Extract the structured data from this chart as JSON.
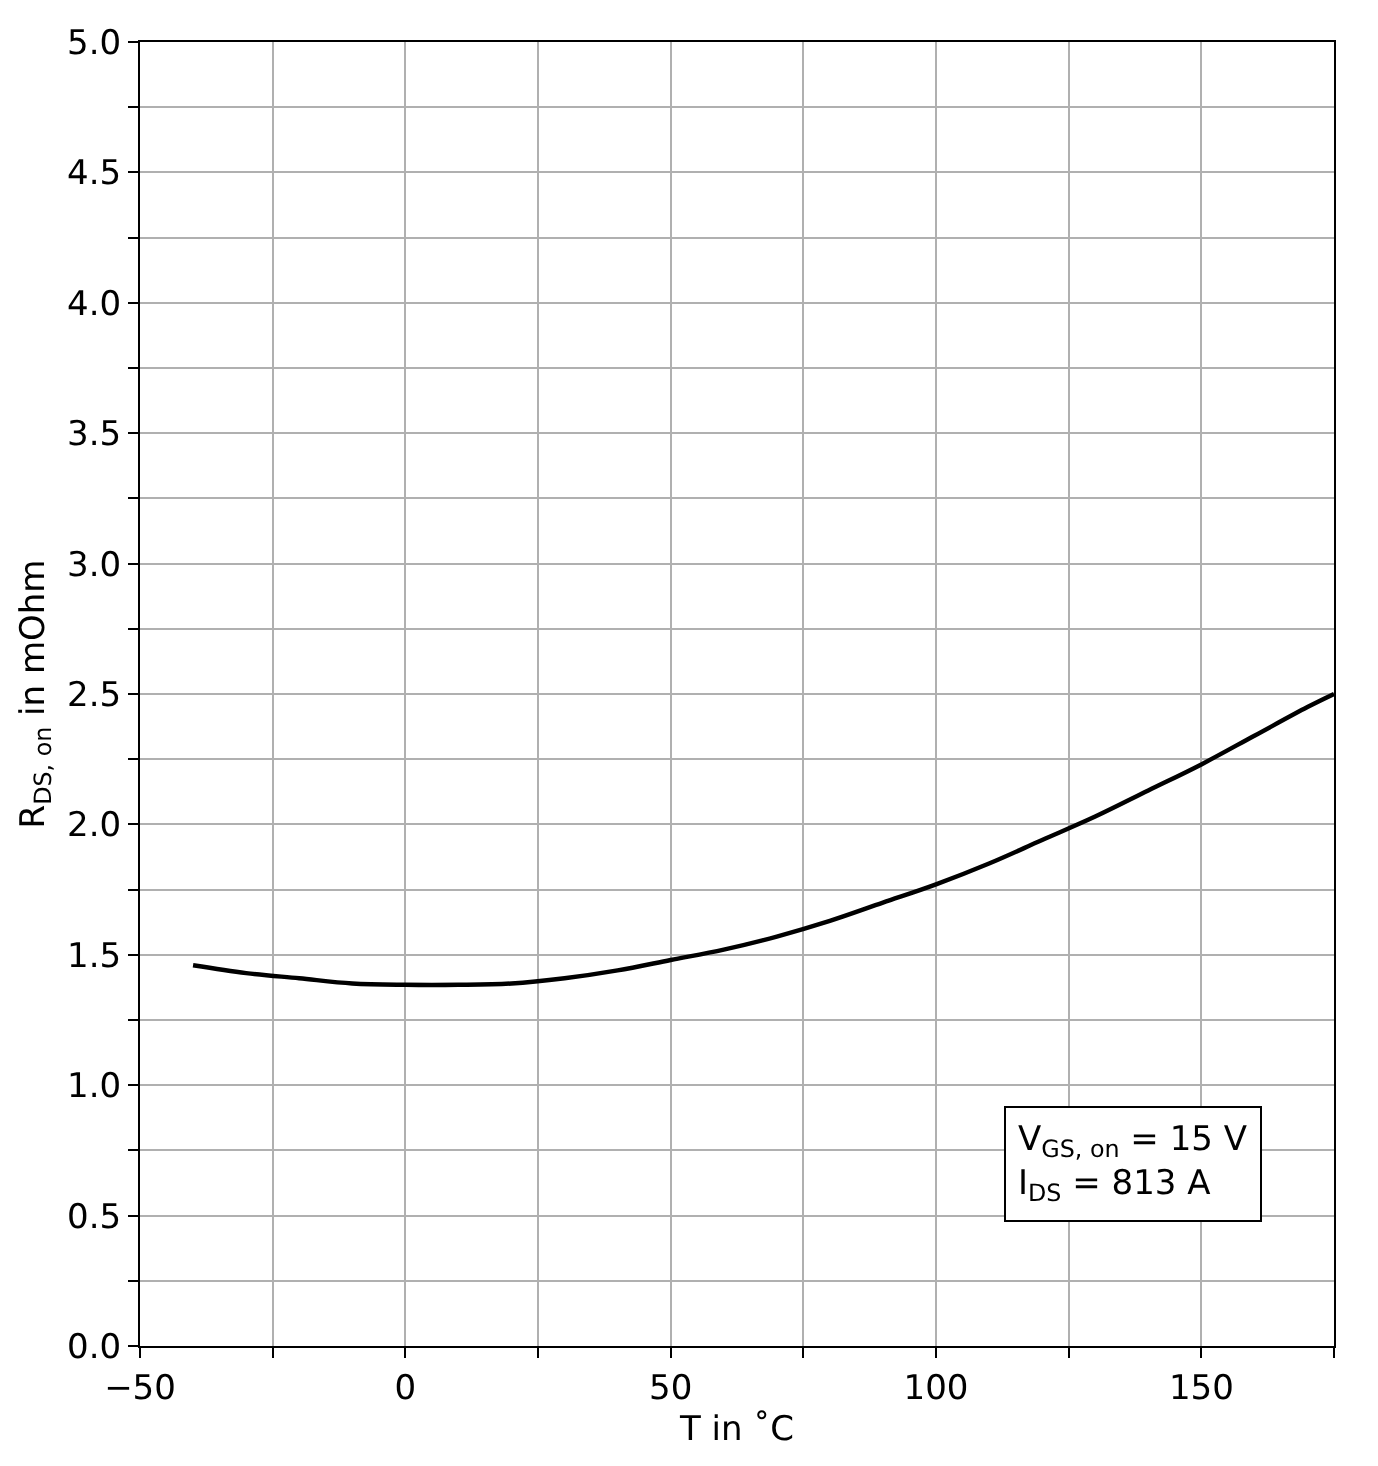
{
  "chart_data": {
    "type": "line",
    "xlabel": "T in ˚C",
    "ylabel": "R$_{DS, on}$ in mOhm",
    "x": [
      -40,
      -30,
      -20,
      -10,
      0,
      10,
      20,
      30,
      40,
      50,
      60,
      70,
      80,
      90,
      100,
      110,
      120,
      130,
      140,
      150,
      160,
      170,
      175
    ],
    "series": [
      {
        "color": "#000000",
        "values": [
          1.46,
          1.43,
          1.41,
          1.39,
          1.385,
          1.385,
          1.39,
          1.41,
          1.44,
          1.48,
          1.52,
          1.57,
          1.63,
          1.7,
          1.77,
          1.85,
          1.94,
          2.03,
          2.13,
          2.23,
          2.34,
          2.45,
          2.5
        ]
      }
    ],
    "xlim": [
      -50,
      175
    ],
    "xticks": [
      -50,
      {
        "value": -25,
        "label": null
      },
      0,
      {
        "value": 25,
        "label": null
      },
      50,
      {
        "value": 75,
        "label": null
      },
      100,
      {
        "value": 125,
        "label": null
      },
      150,
      {
        "value": 175,
        "label": null
      }
    ],
    "ylim": [
      0,
      5
    ],
    "yticks": [
      "0.0",
      {
        "value": 0.25,
        "label": null
      },
      {
        "value": 0.5,
        "label": "0.5"
      },
      {
        "value": 0.75,
        "label": null
      },
      {
        "value": 1,
        "label": "1.0"
      },
      {
        "value": 1.25,
        "label": null
      },
      {
        "value": 1.5,
        "label": "1.5"
      },
      {
        "value": 1.75,
        "label": null
      },
      {
        "value": 2,
        "label": "2.0"
      },
      {
        "value": 2.25,
        "label": null
      },
      {
        "value": 2.5,
        "label": "2.5"
      },
      {
        "value": 2.75,
        "label": null
      },
      {
        "value": 3,
        "label": "3.0"
      },
      {
        "value": 3.25,
        "label": null
      },
      {
        "value": 3.5,
        "label": "3.5"
      },
      {
        "value": 3.75,
        "label": null
      },
      {
        "value": 4,
        "label": "4.0"
      },
      {
        "value": 4.25,
        "label": null
      },
      {
        "value": 4.5,
        "label": "4.5"
      },
      {
        "value": 4.75,
        "label": null
      },
      {
        "value": 5,
        "label": "5.0"
      }
    ],
    "grid": true,
    "legend": false,
    "marker": "none",
    "line_style": "solid",
    "annotations": [
      "V$_{GS, on}$ = 15 V\nI$_{DS}$ = 813 A"
    ]
  }
}
